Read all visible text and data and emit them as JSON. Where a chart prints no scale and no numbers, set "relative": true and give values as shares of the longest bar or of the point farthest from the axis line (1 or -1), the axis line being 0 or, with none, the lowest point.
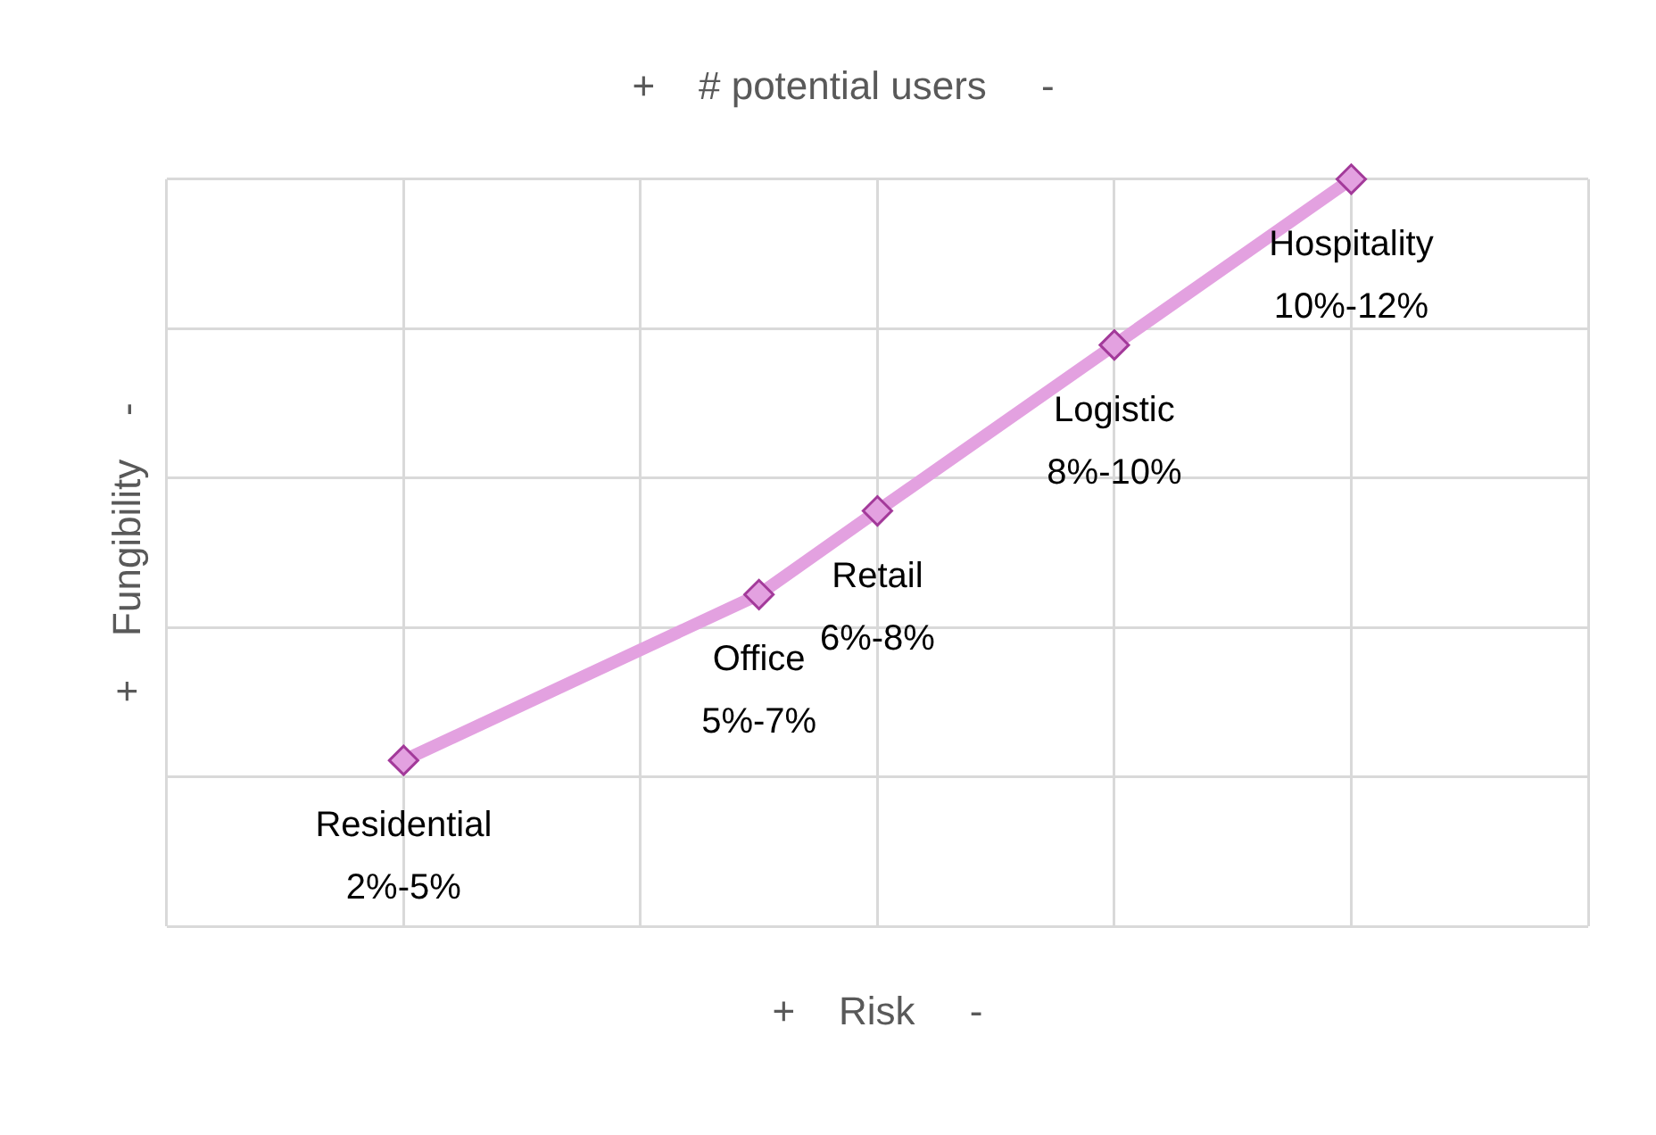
{
  "chart_data": {
    "type": "line",
    "title": "+    # potential users     -",
    "xlabel": "+    Risk     -",
    "ylabel": "+    Fungibility    -",
    "relative": true,
    "categories": [
      null,
      null,
      null,
      null,
      null,
      null,
      null,
      null,
      null,
      null,
      null,
      null,
      null
    ],
    "series": [
      {
        "color": "#e3a1e0",
        "values": [
          null,
          null,
          0.222,
          null,
          null,
          0.444,
          0.556,
          null,
          0.778,
          null,
          1,
          null,
          null
        ]
      }
    ],
    "annotations": [
      "Residential\n2%-5%",
      "Office\n5%-7%",
      "Retail\n6%-8%",
      "Logistic\n8%-10%",
      "Hospitality\n10%-12%"
    ],
    "grid": true,
    "legend": false,
    "marker": "diamond",
    "line_style": "solid"
  }
}
